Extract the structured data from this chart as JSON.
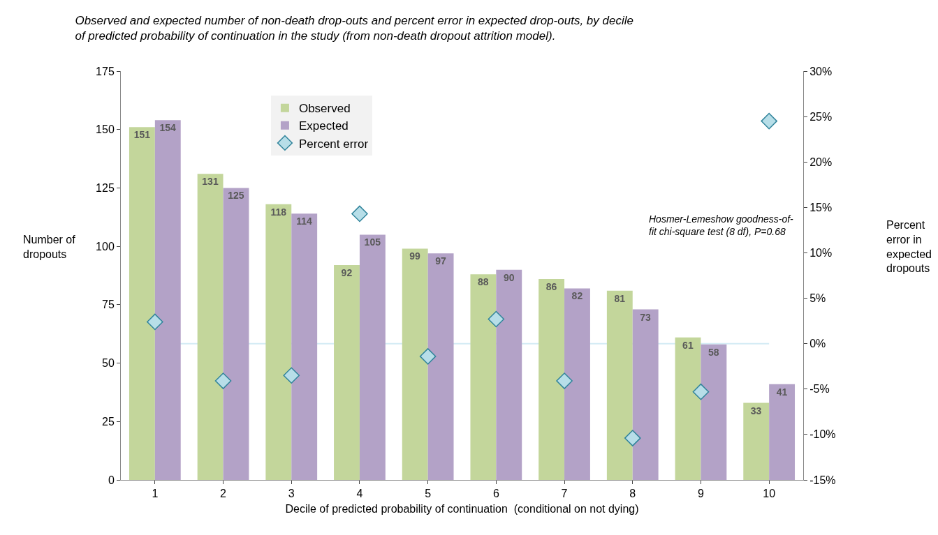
{
  "chart_data": {
    "type": "bar",
    "title": "Observed and expected number of non-death drop-outs and percent error in expected drop-outs, by decile\nof predicted probability of continuation in the study (from non-death dropout attrition model).",
    "xlabel": "Decile of predicted probability of continuation  (conditional on not dying)",
    "ylabel": "Number of\ndropouts",
    "y2label": "Percent\nerror in\nexpected\ndropouts",
    "categories": [
      "1",
      "2",
      "3",
      "4",
      "5",
      "6",
      "7",
      "8",
      "9",
      "10"
    ],
    "series": [
      {
        "name": "Observed",
        "color": "#c3d69b",
        "values": [
          151,
          131,
          118,
          92,
          99,
          88,
          86,
          81,
          61,
          33
        ],
        "value_labels": [
          "151",
          "131",
          "118",
          "92",
          "99",
          "88",
          "86",
          "81",
          "61",
          "33"
        ]
      },
      {
        "name": "Expected",
        "color": "#b3a2c7",
        "values": [
          154,
          125,
          114,
          105,
          97,
          90,
          82,
          73,
          58,
          41
        ],
        "value_labels": [
          "154",
          "125",
          "114",
          "105",
          "97",
          "90",
          "82",
          "73",
          "58",
          "41"
        ]
      },
      {
        "name": "Percent error",
        "type": "scatter",
        "axis": "y2",
        "color": "#b7dee8",
        "values": [
          2.4,
          -4.1,
          -3.5,
          14.3,
          -1.4,
          2.7,
          -4.1,
          -10.4,
          -5.3,
          24.5
        ]
      }
    ],
    "ylim": [
      0,
      175
    ],
    "yticks": [
      0,
      25,
      50,
      75,
      100,
      125,
      150,
      175
    ],
    "y2lim": [
      -15,
      30
    ],
    "y2ticks": [
      {
        "value": -15,
        "label": "-15%"
      },
      {
        "value": -10,
        "label": "-10%"
      },
      {
        "value": -5,
        "label": "-5%"
      },
      {
        "value": 0,
        "label": "0%"
      },
      {
        "value": 5,
        "label": "5%"
      },
      {
        "value": 10,
        "label": "10%"
      },
      {
        "value": 15,
        "label": "15%"
      },
      {
        "value": 20,
        "label": "20%"
      },
      {
        "value": 25,
        "label": "25%"
      },
      {
        "value": 30,
        "label": "30%"
      }
    ],
    "ref_lines": [
      {
        "axis": "y2",
        "value": 0,
        "color": "#d4ebf5"
      }
    ],
    "annotations": [
      "Hosmer-Lemeshow goodness-of-\nfit chi-square test (8 df), P=0.68"
    ],
    "legend": "top left",
    "marker": "diamond",
    "grid": false
  }
}
